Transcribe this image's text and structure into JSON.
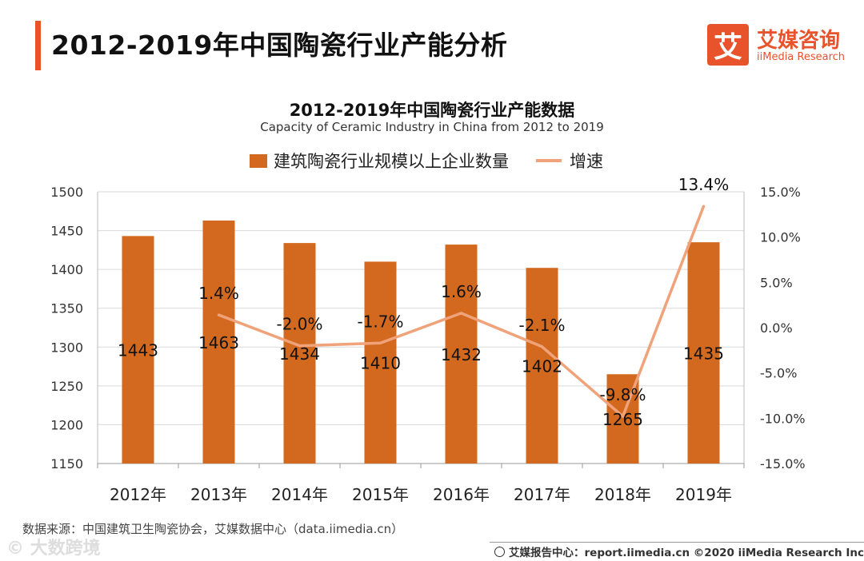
{
  "header": {
    "title": "2012-2019年中国陶瓷行业产能分析"
  },
  "logo": {
    "glyph": "艾",
    "cn": "艾媒咨询",
    "en": "iiMedia Research"
  },
  "chart_data": {
    "type": "bar",
    "title": "2012-2019年中国陶瓷行业产能数据",
    "subtitle": "Capacity of Ceramic Industry in China from 2012 to 2019",
    "categories": [
      "2012年",
      "2013年",
      "2014年",
      "2015年",
      "2016年",
      "2017年",
      "2018年",
      "2019年"
    ],
    "series": [
      {
        "name": "建筑陶瓷行业规模以上企业数量",
        "type": "bar",
        "axis": "left",
        "values": [
          1443,
          1463,
          1434,
          1410,
          1432,
          1402,
          1265,
          1435
        ],
        "labels": [
          "1443",
          "1463",
          "1434",
          "1410",
          "1432",
          "1402",
          "1265",
          "1435"
        ],
        "color": "#d2691e"
      },
      {
        "name": "增速",
        "type": "line",
        "axis": "right",
        "values": [
          null,
          1.4,
          -2.0,
          -1.7,
          1.6,
          -2.1,
          -9.8,
          13.4
        ],
        "labels": [
          "",
          "1.4%",
          "-2.0%",
          "-1.7%",
          "1.6%",
          "-2.1%",
          "-9.8%",
          "13.4%"
        ],
        "color": "#f0a27a"
      }
    ],
    "left_axis": {
      "ylim": [
        1150,
        1500
      ],
      "ticks": [
        1500,
        1450,
        1400,
        1350,
        1300,
        1250,
        1200,
        1150
      ],
      "tick_labels": [
        "1500",
        "1450",
        "1400",
        "1350",
        "1300",
        "1250",
        "1200",
        "1150"
      ]
    },
    "right_axis": {
      "ylim": [
        -15,
        15
      ],
      "ticks": [
        15,
        10,
        5,
        0,
        -5,
        -10,
        -15
      ],
      "tick_labels": [
        "15.0%",
        "10.0%",
        "5.0%",
        "0.0%",
        "-5.0%",
        "-10.0%",
        "-15.0%"
      ]
    },
    "grid": true,
    "legend": "top-center"
  },
  "footer": {
    "source": "数据来源：中国建筑卫生陶瓷协会，艾媒数据中心（data.iimedia.cn）",
    "report": "艾媒报告中心：report.iimedia.cn  ©2020  iiMedia Research  Inc",
    "watermark": "© 大数跨境"
  },
  "colors": {
    "accent": "#e8532b",
    "bar": "#d2691e",
    "line": "#f0a27a",
    "grid": "#d9d9d9"
  }
}
